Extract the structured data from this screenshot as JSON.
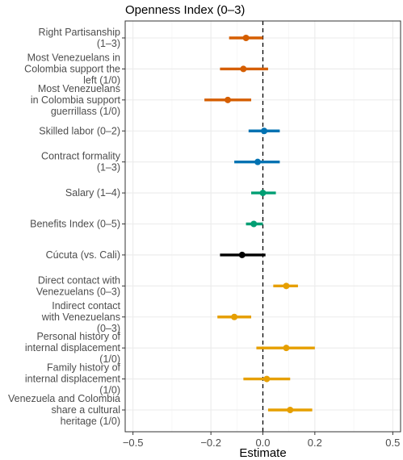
{
  "chart_data": {
    "type": "coefficient-plot",
    "title": "Openness Index (0–3)",
    "xlabel": "Estimate",
    "ylabel": "",
    "xlim": [
      -0.53,
      0.53
    ],
    "xticks": [
      -0.5,
      -0.2,
      0.0,
      0.2,
      0.5
    ],
    "xtick_labels": [
      "−0.5",
      "−0.2",
      "0.0",
      "0.2",
      "0.5"
    ],
    "reference_line": {
      "x": 0,
      "style": "dashed"
    },
    "grid": true,
    "legend": "none",
    "colors": {
      "orange": "#d55e00",
      "blue": "#0072b2",
      "green": "#009e73",
      "black": "#000000",
      "yellow": "#e69f00"
    },
    "series": [
      {
        "label": [
          "Right Partisanship",
          "(1–3)"
        ],
        "estimate": -0.065,
        "lower": -0.13,
        "upper": 0.0,
        "color": "#d55e00"
      },
      {
        "label": [
          "Most Venezuelans in",
          "Colombia support the",
          "left (1/0)"
        ],
        "estimate": -0.075,
        "lower": -0.165,
        "upper": 0.02,
        "color": "#d55e00"
      },
      {
        "label": [
          "Most Venezuelans",
          "in Colombia support",
          "guerrillass (1/0)"
        ],
        "estimate": -0.135,
        "lower": -0.225,
        "upper": -0.045,
        "color": "#d55e00"
      },
      {
        "label": [
          "Skilled labor (0–2)"
        ],
        "estimate": 0.005,
        "lower": -0.055,
        "upper": 0.065,
        "color": "#0072b2"
      },
      {
        "label": [
          "Contract formality",
          "(1–3)"
        ],
        "estimate": -0.02,
        "lower": -0.11,
        "upper": 0.065,
        "color": "#0072b2"
      },
      {
        "label": [
          "Salary (1–4)"
        ],
        "estimate": 0.0,
        "lower": -0.045,
        "upper": 0.05,
        "color": "#009e73"
      },
      {
        "label": [
          "Benefits Index (0–5)"
        ],
        "estimate": -0.035,
        "lower": -0.065,
        "upper": 0.0,
        "color": "#009e73"
      },
      {
        "label": [
          "Cúcuta (vs. Cali)"
        ],
        "estimate": -0.08,
        "lower": -0.165,
        "upper": 0.01,
        "color": "#000000"
      },
      {
        "label": [
          "Direct contact with",
          "Venezuelans (0–3)"
        ],
        "estimate": 0.09,
        "lower": 0.04,
        "upper": 0.135,
        "color": "#e69f00"
      },
      {
        "label": [
          "Indirect contact",
          "with Venezuelans",
          "(0–3)"
        ],
        "estimate": -0.11,
        "lower": -0.175,
        "upper": -0.045,
        "color": "#e69f00"
      },
      {
        "label": [
          "Personal history of",
          "internal displacement",
          "(1/0)"
        ],
        "estimate": 0.09,
        "lower": -0.025,
        "upper": 0.2,
        "color": "#e69f00"
      },
      {
        "label": [
          "Family history of",
          "internal displacement",
          "(1/0)"
        ],
        "estimate": 0.015,
        "lower": -0.075,
        "upper": 0.105,
        "color": "#e69f00"
      },
      {
        "label": [
          "Venezuela and Colombia",
          "share a cultural",
          "heritage (1/0)"
        ],
        "estimate": 0.105,
        "lower": 0.02,
        "upper": 0.19,
        "color": "#e69f00"
      }
    ]
  }
}
